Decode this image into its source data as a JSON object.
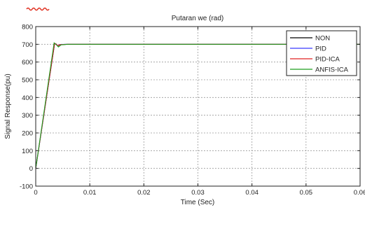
{
  "chart_data": {
    "type": "line",
    "title": "Putaran we (rad)",
    "xlabel": "Time (Sec)",
    "ylabel": "Signal Response(pu)",
    "xlim": [
      0,
      0.06
    ],
    "ylim": [
      -100,
      800
    ],
    "x_ticks": [
      0,
      0.01,
      0.02,
      0.03,
      0.04,
      0.05,
      0.06
    ],
    "x_tick_labels": [
      "0",
      "0.01",
      "0.02",
      "0.03",
      "0.04",
      "0.05",
      "0.06"
    ],
    "y_ticks": [
      -100,
      0,
      100,
      200,
      300,
      400,
      500,
      600,
      700,
      800
    ],
    "y_tick_labels": [
      "-100",
      "0",
      "100",
      "200",
      "300",
      "400",
      "500",
      "600",
      "700",
      "800"
    ],
    "grid": true,
    "legend_position": "top-right",
    "series": [
      {
        "name": "NON",
        "color": "#000000",
        "x": [
          0,
          0.0035,
          0.0038,
          0.0041,
          0.0045,
          0.006,
          0.06
        ],
        "y": [
          0,
          705,
          700,
          690,
          698,
          700,
          700
        ]
      },
      {
        "name": "PID",
        "color": "#3a3aff",
        "x": [
          0,
          0.0035,
          0.0038,
          0.0041,
          0.0045,
          0.006,
          0.06
        ],
        "y": [
          0,
          705,
          702,
          692,
          699,
          700,
          700
        ]
      },
      {
        "name": "PID-ICA",
        "color": "#e02020",
        "x": [
          0,
          0.0035,
          0.0038,
          0.0041,
          0.0045,
          0.006,
          0.06
        ],
        "y": [
          0,
          706,
          701,
          692,
          698,
          700,
          700
        ]
      },
      {
        "name": "ANFIS-ICA",
        "color": "#1e9e1e",
        "x": [
          0,
          0.0034,
          0.0038,
          0.0042,
          0.0047,
          0.006,
          0.06
        ],
        "y": [
          0,
          708,
          698,
          685,
          697,
          700,
          700
        ]
      }
    ]
  },
  "colors": {
    "axis": "#222222",
    "grid": "#9a9a9a",
    "squiggle": "#e03020"
  }
}
